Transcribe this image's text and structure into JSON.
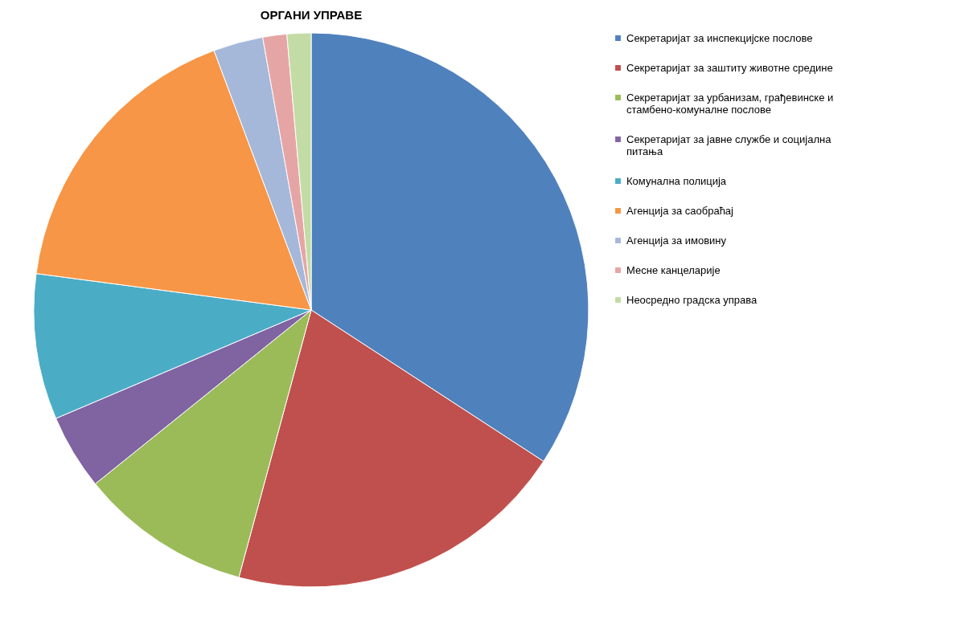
{
  "chart_data": {
    "type": "pie",
    "title": "ОРГАНИ УПРАВЕ",
    "categories": [
      "Секретаријат за инспекцијске послове",
      "Секретаријат за заштиту животне средине",
      "Секретаријат за урбанизам, грађевинске и стамбено-комуналне послове",
      "Секретаријат за јавне службе и социјална питања",
      "Комунална полиција",
      "Агенција за саобраћај",
      "Агенција за имовину",
      "Месне канцеларије",
      "Неосредно градска управа"
    ],
    "values": [
      34.2,
      20,
      10,
      4.4,
      8.5,
      17.2,
      2.9,
      1.4,
      1.4
    ],
    "colors": [
      "#4f81bd",
      "#c0504d",
      "#9bbb59",
      "#8064a2",
      "#4bacc6",
      "#f79646",
      "#a5b8da",
      "#e6a5a5",
      "#c3dca5"
    ],
    "legend": "right"
  }
}
